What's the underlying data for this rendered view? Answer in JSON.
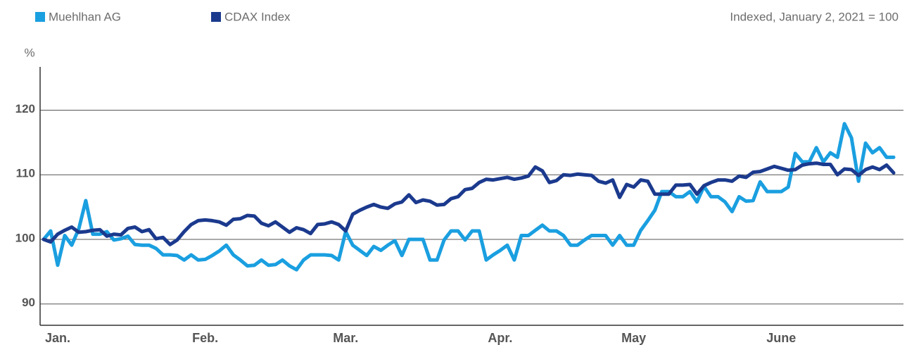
{
  "chart_data": {
    "type": "line",
    "note": "Indexed, January 2, 2021 = 100",
    "y_label": "%",
    "categories": [
      null,
      null,
      "Jan.",
      null,
      null,
      null,
      null,
      null,
      null,
      null,
      null,
      null,
      null,
      null,
      null,
      null,
      null,
      null,
      null,
      null,
      null,
      null,
      null,
      "Feb.",
      null,
      null,
      null,
      null,
      null,
      null,
      null,
      null,
      null,
      null,
      null,
      null,
      null,
      null,
      null,
      null,
      null,
      null,
      null,
      "Mar.",
      null,
      null,
      null,
      null,
      null,
      null,
      null,
      null,
      null,
      null,
      null,
      null,
      null,
      null,
      null,
      null,
      null,
      null,
      null,
      null,
      null,
      "Apr.",
      null,
      null,
      null,
      null,
      null,
      null,
      null,
      null,
      null,
      null,
      null,
      null,
      null,
      null,
      null,
      null,
      null,
      null,
      "May",
      null,
      null,
      null,
      null,
      null,
      null,
      null,
      null,
      null,
      null,
      null,
      null,
      null,
      null,
      null,
      null,
      null,
      null,
      null,
      null,
      "June",
      null,
      null,
      null,
      null,
      null,
      null,
      null,
      null,
      null,
      null,
      null,
      null,
      null,
      null,
      null,
      null
    ],
    "series": [
      {
        "name": "Muehlhan AG",
        "color": "#1a9fe0",
        "values": [
          100,
          101.3,
          96,
          100.6,
          99.1,
          101.6,
          106,
          100.8,
          100.8,
          101.2,
          99.9,
          100.1,
          100.5,
          99.2,
          99.1,
          99.1,
          98.6,
          97.6,
          97.6,
          97.5,
          96.8,
          97.6,
          96.8,
          96.9,
          97.5,
          98.2,
          99.1,
          97.6,
          96.8,
          95.9,
          96,
          96.8,
          96,
          96.1,
          96.8,
          95.9,
          95.3,
          96.8,
          97.6,
          97.6,
          97.6,
          97.5,
          96.8,
          101.2,
          99.1,
          98.3,
          97.5,
          98.9,
          98.3,
          99.1,
          99.8,
          97.5,
          100,
          100,
          100,
          96.8,
          96.8,
          99.9,
          101.3,
          101.3,
          99.9,
          101.3,
          101.3,
          96.8,
          97.6,
          98.3,
          99.1,
          96.8,
          100.6,
          100.6,
          101.4,
          102.2,
          101.3,
          101.3,
          100.6,
          99.1,
          99.1,
          99.9,
          100.6,
          100.6,
          100.6,
          99.1,
          100.6,
          99.1,
          99.1,
          101.4,
          102.9,
          104.5,
          107.4,
          107.4,
          106.6,
          106.6,
          107.4,
          105.8,
          108.2,
          106.6,
          106.6,
          105.8,
          104.3,
          106.6,
          105.9,
          106,
          108.9,
          107.4,
          107.4,
          107.4,
          108.1,
          113.3,
          112,
          112,
          114.2,
          112,
          113.4,
          112.7,
          117.9,
          115.7,
          109,
          114.9,
          113.4,
          114.2,
          112.7,
          112.7
        ]
      },
      {
        "name": "CDAX Index",
        "color": "#1b3a8e",
        "values": [
          100,
          99.6,
          100.8,
          101.4,
          101.9,
          101.1,
          101.2,
          101.4,
          101.5,
          100.5,
          100.8,
          100.7,
          101.7,
          101.9,
          101.2,
          101.5,
          100.1,
          100.3,
          99.2,
          99.9,
          101.2,
          102.3,
          102.9,
          103,
          102.9,
          102.7,
          102.2,
          103.1,
          103.2,
          103.7,
          103.6,
          102.5,
          102.1,
          102.7,
          101.9,
          101.1,
          101.8,
          101.5,
          100.9,
          102.3,
          102.4,
          102.7,
          102.3,
          101.3,
          103.9,
          104.5,
          105,
          105.4,
          105,
          104.8,
          105.5,
          105.8,
          106.9,
          105.7,
          106.1,
          105.9,
          105.3,
          105.4,
          106.3,
          106.6,
          107.7,
          107.9,
          108.8,
          109.3,
          109.2,
          109.4,
          109.6,
          109.3,
          109.5,
          109.8,
          111.2,
          110.6,
          108.8,
          109.1,
          110,
          109.9,
          110.1,
          110,
          109.9,
          109,
          108.7,
          109.2,
          106.5,
          108.5,
          108.1,
          109.2,
          109,
          107,
          107,
          107,
          108.4,
          108.4,
          108.5,
          107,
          108.3,
          108.8,
          109.2,
          109.2,
          109,
          109.8,
          109.6,
          110.4,
          110.5,
          110.9,
          111.3,
          111,
          110.7,
          110.8,
          111.5,
          111.7,
          111.8,
          111.6,
          111.6,
          110,
          110.9,
          110.8,
          109.9,
          110.8,
          111.2,
          110.8,
          111.5,
          110.3
        ]
      }
    ],
    "ylim": [
      86.7,
      126.7
    ],
    "yticks": [
      90,
      100,
      110,
      120
    ],
    "grid": true
  }
}
